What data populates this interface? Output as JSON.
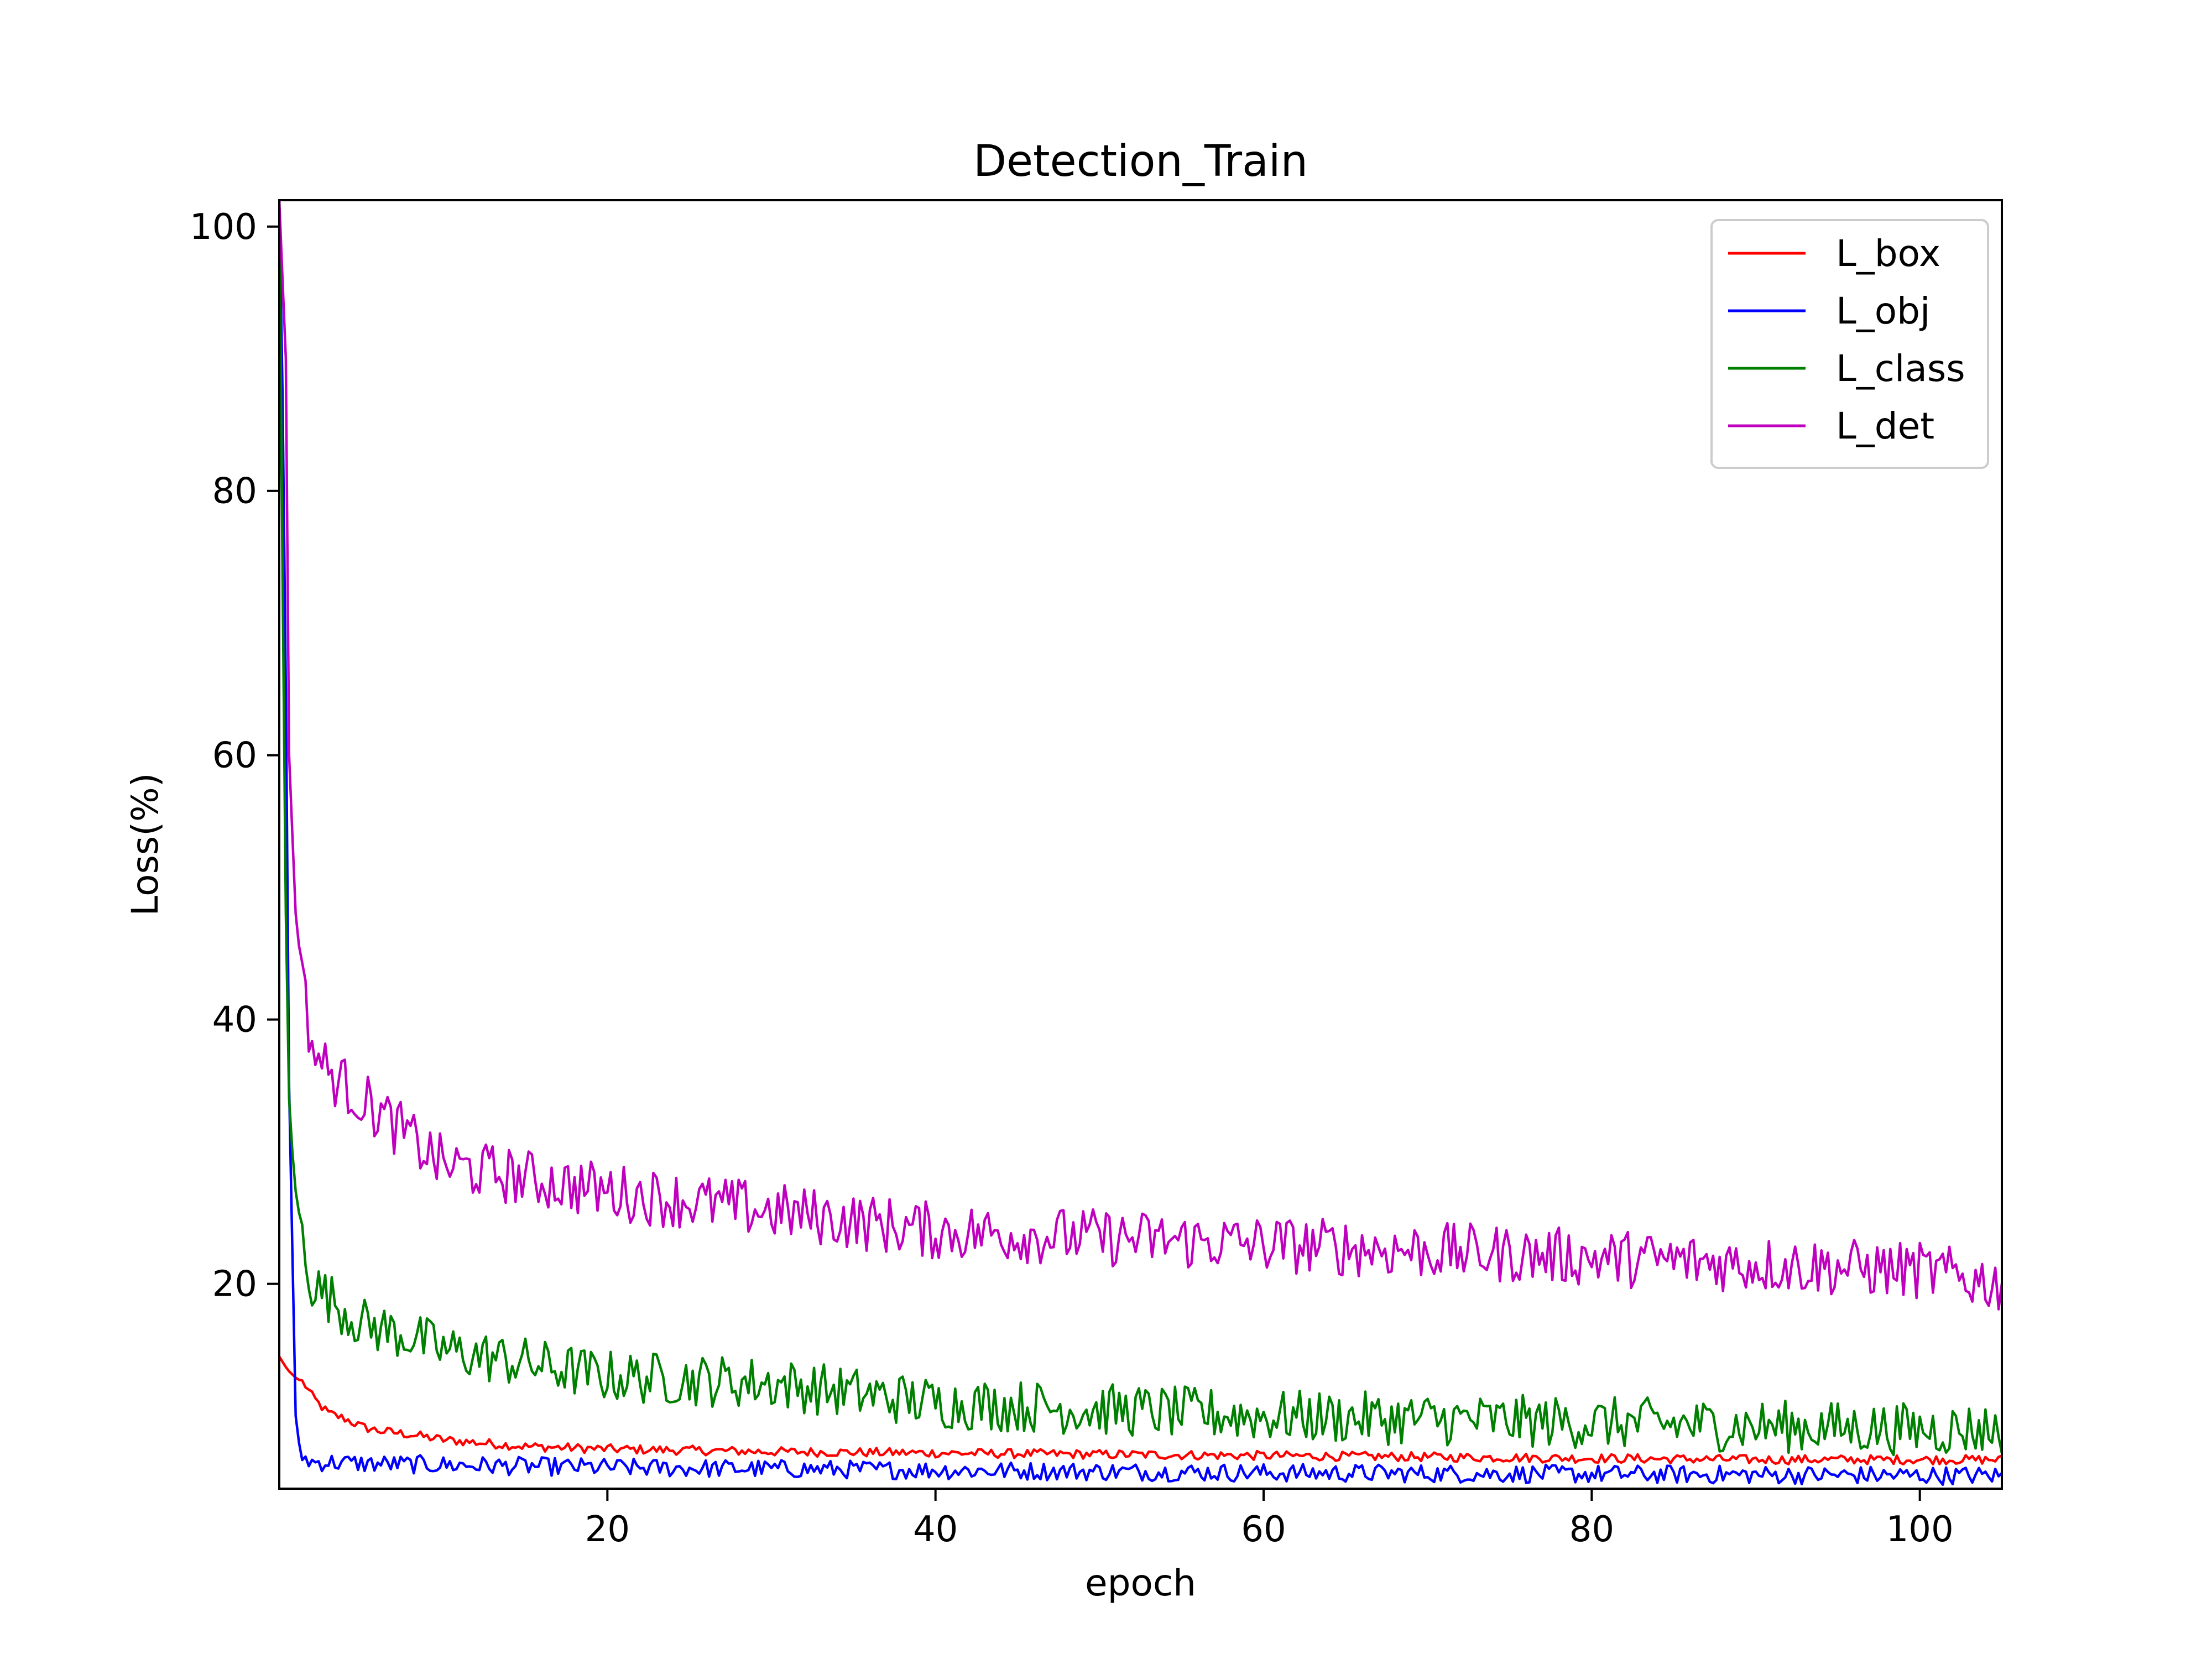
{
  "chart_data": {
    "type": "line",
    "title": "Detection_Train",
    "xlabel": "epoch",
    "ylabel": "Loss(%)",
    "xlim": [
      0,
      105
    ],
    "ylim": [
      4.5,
      102
    ],
    "xticks": [
      20,
      40,
      60,
      80,
      100
    ],
    "yticks": [
      20,
      40,
      60,
      80,
      100
    ],
    "grid": false,
    "legend_position": "top-right",
    "series": [
      {
        "name": "L_box",
        "color": "#ff0000",
        "x": [
          0,
          0.5,
          1,
          1.5,
          2,
          2.5,
          3,
          4,
          5,
          6,
          8,
          10,
          15,
          20,
          30,
          40,
          50,
          60,
          70,
          80,
          90,
          100,
          105
        ],
        "values": [
          14.5,
          13.5,
          12.9,
          12.5,
          11.5,
          10.8,
          10.2,
          9.8,
          9.2,
          8.9,
          8.6,
          8.2,
          7.7,
          7.5,
          7.3,
          7.2,
          7.1,
          7.0,
          6.9,
          6.8,
          6.7,
          6.7,
          6.7
        ],
        "noise": 0.35
      },
      {
        "name": "L_obj",
        "color": "#0000ff",
        "x": [
          0,
          0.3,
          0.6,
          1,
          1.3,
          2,
          3,
          5,
          10,
          20,
          40,
          60,
          80,
          100,
          105
        ],
        "values": [
          102,
          80,
          35,
          10,
          7,
          6.5,
          6.5,
          6.4,
          6.3,
          6.1,
          5.9,
          5.7,
          5.6,
          5.5,
          5.5
        ],
        "noise": 0.7
      },
      {
        "name": "L_class",
        "color": "#008000",
        "x": [
          0,
          0.3,
          0.5,
          0.8,
          1,
          1.5,
          2,
          3,
          5,
          8,
          10,
          15,
          20,
          30,
          40,
          60,
          80,
          100,
          105
        ],
        "values": [
          102,
          60,
          36,
          30,
          27,
          23,
          20,
          19,
          17,
          16,
          15,
          14,
          13,
          12.5,
          11,
          10,
          9.5,
          9.0,
          9.0
        ],
        "noise": 2.0
      },
      {
        "name": "L_det",
        "color": "#bf00bf",
        "x": [
          0,
          0.4,
          0.6,
          1,
          1.5,
          2,
          3,
          5,
          8,
          10,
          15,
          20,
          30,
          40,
          60,
          80,
          100,
          105
        ],
        "values": [
          102,
          90,
          60,
          48,
          42,
          38,
          36,
          34,
          31,
          29,
          28,
          27,
          25.5,
          24,
          23,
          22,
          21,
          20
        ],
        "noise": 2.2
      }
    ]
  }
}
